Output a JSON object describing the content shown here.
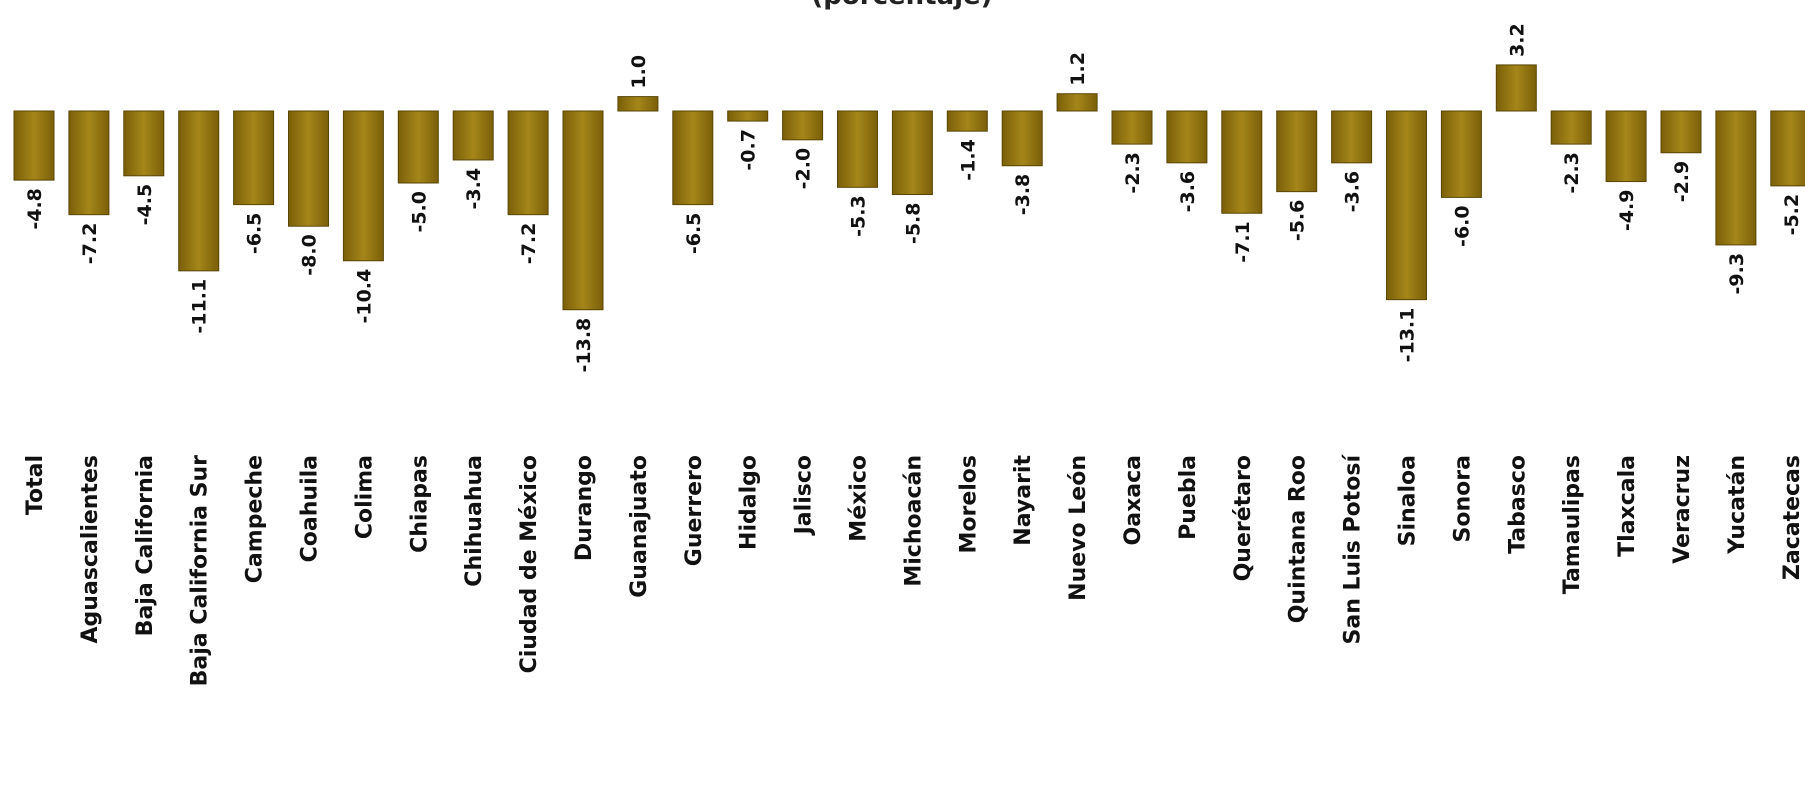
{
  "chart_data": {
    "type": "bar",
    "subtitle": "(porcentaje)",
    "categories": [
      "Total",
      "Aguascalientes",
      "Baja California",
      "Baja California Sur",
      "Campeche",
      "Coahuila",
      "Colima",
      "Chiapas",
      "Chihuahua",
      "Ciudad de México",
      "Durango",
      "Guanajuato",
      "Guerrero",
      "Hidalgo",
      "Jalisco",
      "México",
      "Michoacán",
      "Morelos",
      "Nayarit",
      "Nuevo León",
      "Oaxaca",
      "Puebla",
      "Querétaro",
      "Quintana Roo",
      "San Luis Potosí",
      "Sinaloa",
      "Sonora",
      "Tabasco",
      "Tamaulipas",
      "Tlaxcala",
      "Veracruz",
      "Yucatán",
      "Zacatecas"
    ],
    "value_labels": [
      "-4.8",
      "-7.2",
      "-4.5",
      "-11.1",
      "-6.5",
      "-8.0",
      "-10.4",
      "-5.0",
      "-3.4",
      "-7.2",
      "-13.8",
      "1.0",
      "-6.5",
      "-0.7",
      "-2.0",
      "-5.3",
      "-5.8",
      "-1.4",
      "-3.8",
      "1.2",
      "-2.3",
      "-3.6",
      "-7.1",
      "-5.6",
      "-3.6",
      "-13.1",
      "-6.0",
      "3.2",
      "-2.3",
      "-4.9",
      "-2.9",
      "-9.3",
      "-5.2"
    ],
    "values": [
      -4.8,
      -7.2,
      -4.5,
      -11.1,
      -6.5,
      -8.0,
      -10.4,
      -5.0,
      -3.4,
      -7.2,
      -13.8,
      1.0,
      -6.5,
      -0.7,
      -2.0,
      -5.3,
      -5.8,
      -1.4,
      -3.8,
      1.2,
      -2.3,
      -3.6,
      -7.1,
      -5.6,
      -3.6,
      -13.1,
      -6.0,
      3.2,
      -2.3,
      -4.9,
      -2.9,
      -9.3,
      -5.2
    ],
    "bar_color": "#9a7b10",
    "grid": false,
    "legend": "none"
  }
}
